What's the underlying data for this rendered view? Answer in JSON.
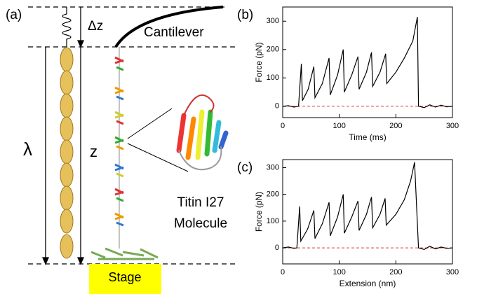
{
  "diagram": {
    "label": "(a)",
    "delta_z": "Δz",
    "cantilever": "Cantilever",
    "lambda": "λ",
    "z": "z",
    "molecule": [
      "Titin I27",
      "Molecule"
    ],
    "stage": "Stage"
  },
  "chart_data": [
    {
      "type": "line",
      "panel_label": "(b)",
      "xlabel": "Time (ms)",
      "ylabel": "Force (pN)",
      "xlim": [
        0,
        300
      ],
      "xticks": [
        0,
        100,
        200,
        300
      ],
      "ylim": [
        -40,
        350
      ],
      "yticks": [
        0,
        100,
        200,
        300
      ],
      "reference_line": {
        "value": 0,
        "color": "#e03030"
      },
      "series": [
        {
          "name": "Force",
          "color": "#000000",
          "x": [
            0,
            10,
            20,
            28,
            33,
            35,
            45,
            55,
            57,
            70,
            82,
            84,
            97,
            107,
            109,
            122,
            133,
            135,
            148,
            157,
            159,
            172,
            182,
            184,
            200,
            215,
            230,
            238,
            240,
            250,
            260,
            270,
            280,
            290,
            300
          ],
          "values": [
            0,
            2,
            -3,
            0,
            150,
            20,
            60,
            140,
            30,
            80,
            170,
            40,
            110,
            200,
            50,
            110,
            175,
            60,
            120,
            190,
            70,
            120,
            185,
            80,
            120,
            170,
            230,
            315,
            0,
            -5,
            5,
            -3,
            4,
            -2,
            0
          ]
        }
      ]
    },
    {
      "type": "line",
      "panel_label": "(c)",
      "xlabel": "Extension (nm)",
      "ylabel": "Force (pN)",
      "xlim": [
        0,
        300
      ],
      "xticks": [
        0,
        100,
        200,
        300
      ],
      "ylim": [
        -60,
        330
      ],
      "yticks": [
        0,
        100,
        200,
        300
      ],
      "reference_line": {
        "value": 0,
        "color": "#e03030"
      },
      "series": [
        {
          "name": "Force",
          "color": "#000000",
          "x": [
            0,
            10,
            20,
            25,
            30,
            32,
            44,
            55,
            57,
            70,
            82,
            84,
            97,
            107,
            109,
            122,
            133,
            135,
            148,
            157,
            159,
            172,
            181,
            183,
            200,
            215,
            226,
            233,
            240,
            250,
            260,
            270,
            280,
            290,
            300
          ],
          "values": [
            0,
            3,
            -2,
            0,
            155,
            25,
            70,
            140,
            35,
            90,
            170,
            45,
            115,
            200,
            55,
            115,
            175,
            65,
            125,
            190,
            75,
            125,
            185,
            85,
            125,
            180,
            250,
            320,
            0,
            -6,
            6,
            -4,
            3,
            -2,
            0
          ]
        }
      ]
    }
  ]
}
